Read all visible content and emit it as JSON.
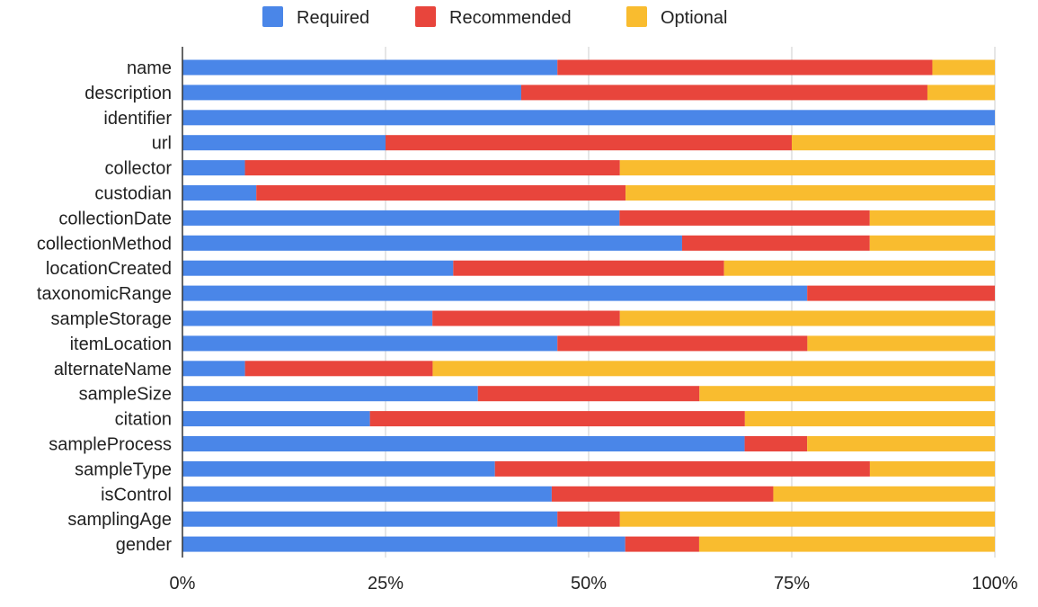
{
  "chart_data": {
    "type": "bar",
    "orientation": "horizontal",
    "stacked": "percent",
    "categories": [
      "name",
      "description",
      "identifier",
      "url",
      "collector",
      "custodian",
      "collectionDate",
      "collectionMethod",
      "locationCreated",
      "taxonomicRange",
      "sampleStorage",
      "itemLocation",
      "alternateName",
      "sampleSize",
      "citation",
      "sampleProcess",
      "sampleType",
      "isControl",
      "samplingAge",
      "gender"
    ],
    "series": [
      {
        "name": "Required",
        "color": "#4a86e8",
        "values": [
          46.2,
          41.7,
          100,
          25,
          7.7,
          9.1,
          53.8,
          61.5,
          33.3,
          76.9,
          30.8,
          46.2,
          7.7,
          36.4,
          23.1,
          69.2,
          38.5,
          45.5,
          46.2,
          54.5
        ]
      },
      {
        "name": "Recommended",
        "color": "#e8453c",
        "values": [
          46.2,
          50.0,
          0,
          50,
          46.2,
          45.5,
          30.8,
          23.1,
          33.3,
          23.1,
          23.1,
          30.8,
          23.1,
          27.3,
          46.2,
          7.7,
          46.2,
          27.3,
          7.7,
          9.1
        ]
      },
      {
        "name": "Optional",
        "color": "#f9bc2f",
        "values": [
          7.7,
          8.3,
          0,
          25,
          46.2,
          45.5,
          15.4,
          15.4,
          33.3,
          0,
          46.2,
          23.1,
          69.2,
          36.4,
          30.8,
          23.1,
          15.4,
          27.3,
          46.2,
          36.4
        ]
      }
    ],
    "xlim": [
      0,
      100
    ],
    "x_ticks": [
      "0%",
      "25%",
      "50%",
      "75%",
      "100%"
    ],
    "grid": true,
    "legend_position": "top-center",
    "title": "",
    "xlabel": "",
    "ylabel": ""
  }
}
